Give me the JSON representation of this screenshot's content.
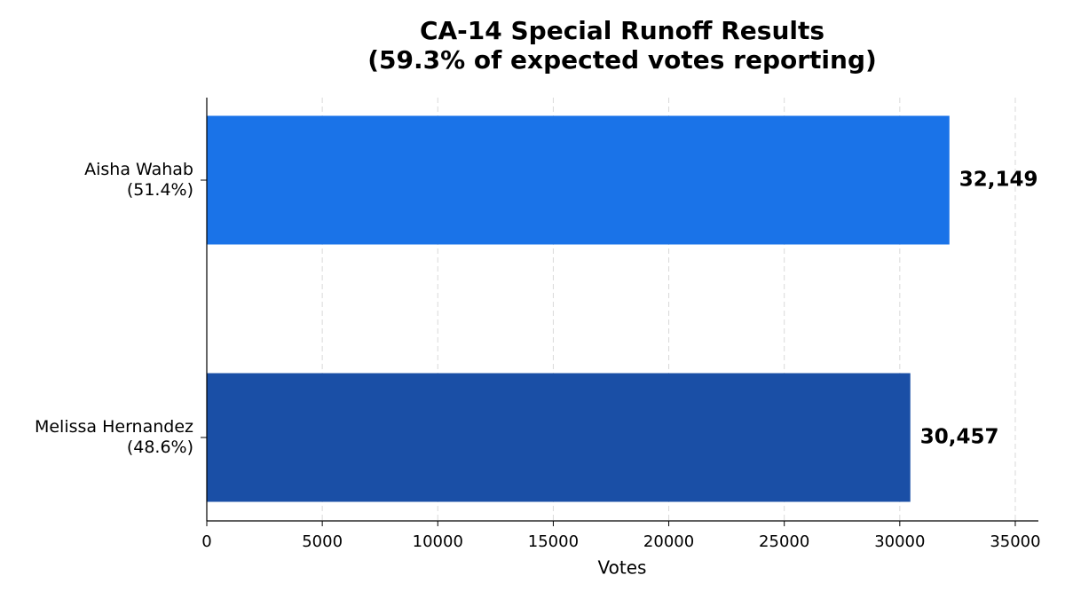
{
  "chart_data": {
    "type": "barh",
    "title": "CA-14 Special Runoff Results\n(59.3% of expected votes reporting)",
    "categories": [
      "Aisha Wahab\n(51.4%)",
      "Melissa Hernandez\n(48.6%)"
    ],
    "series": [
      {
        "name": "Votes",
        "colors": [
          "#1a73e8",
          "#1a4fa6"
        ],
        "values": [
          32149,
          30457
        ],
        "value_labels": [
          "32,149",
          "30,457"
        ]
      }
    ],
    "xlabel": "Votes",
    "xlim": [
      0,
      36000
    ],
    "xticks": [
      0,
      5000,
      10000,
      15000,
      20000,
      25000,
      30000,
      35000
    ],
    "grid": true
  }
}
